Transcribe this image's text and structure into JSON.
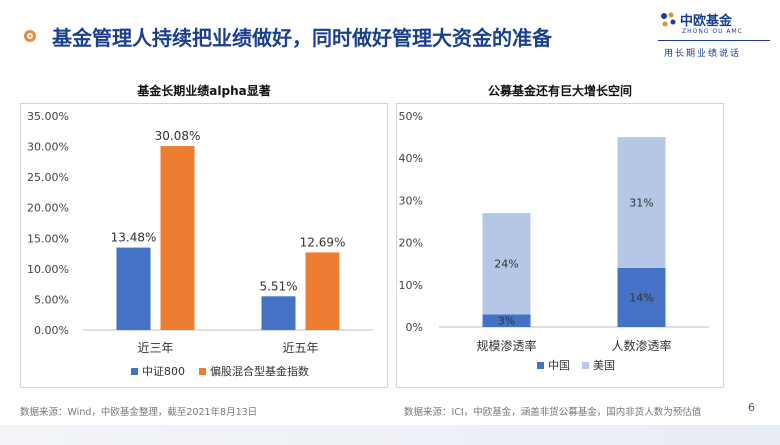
{
  "header": {
    "title": "基金管理人持续把业绩做好，同时做好管理大资金的准备",
    "logo_name": "中欧基金",
    "logo_en": "ZHONG OU AMC",
    "logo_slogan": "用长期业绩说话",
    "colors": {
      "title": "#1a3f8f",
      "accent": "#f0883a"
    }
  },
  "left_panel": {
    "title": "基金长期业绩alpha显著",
    "source": "数据来源：Wind，中欧基金整理，截至2021年8月13日"
  },
  "right_panel": {
    "title": "公募基金还有巨大增长空间",
    "source": "数据来源：ICI，中欧基金，涵盖非货公募基金，国内非货人数为预估值"
  },
  "page_number": "6",
  "chart_data": [
    {
      "type": "bar",
      "title": "基金长期业绩alpha显著",
      "categories": [
        "近三年",
        "近五年"
      ],
      "series": [
        {
          "name": "中证800",
          "values": [
            13.48,
            5.51
          ],
          "labels": [
            "13.48%",
            "5.51%"
          ],
          "color": "#4472c4"
        },
        {
          "name": "偏股混合型基金指数",
          "values": [
            30.08,
            12.69
          ],
          "labels": [
            "30.08%",
            "12.69%"
          ],
          "color": "#ed7d31"
        }
      ],
      "ylim": [
        0,
        35
      ],
      "yticks": [
        "0.00%",
        "5.00%",
        "10.00%",
        "15.00%",
        "20.00%",
        "25.00%",
        "30.00%",
        "35.00%"
      ],
      "legend": "bottom",
      "grid": false
    },
    {
      "type": "bar",
      "stacked": true,
      "title": "公募基金还有巨大增长空间",
      "categories": [
        "规模渗透率",
        "人数渗透率"
      ],
      "series": [
        {
          "name": "中国",
          "values": [
            3,
            14
          ],
          "labels": [
            "3%",
            "14%"
          ],
          "color": "#4472c4"
        },
        {
          "name": "美国",
          "values": [
            24,
            31
          ],
          "labels": [
            "24%",
            "31%"
          ],
          "color": "#b4c7e7"
        }
      ],
      "ylim": [
        0,
        50
      ],
      "yticks": [
        "0%",
        "10%",
        "20%",
        "30%",
        "40%",
        "50%"
      ],
      "legend": "bottom",
      "grid": false
    }
  ]
}
